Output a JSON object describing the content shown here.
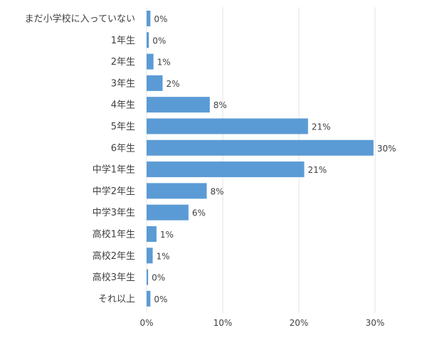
{
  "chart_data": {
    "type": "bar",
    "orientation": "horizontal",
    "categories": [
      "まだ小学校に入っていない",
      "1年生",
      "2年生",
      "3年生",
      "4年生",
      "5年生",
      "6年生",
      "中学1年生",
      "中学2年生",
      "中学3年生",
      "高校1年生",
      "高校2年生",
      "高校3年生",
      "それ以上"
    ],
    "values": [
      0.5,
      0.3,
      0.9,
      2.1,
      8.3,
      21.2,
      29.8,
      20.7,
      7.9,
      5.5,
      1.3,
      0.8,
      0.2,
      0.5
    ],
    "value_labels": [
      "0%",
      "0%",
      "1%",
      "2%",
      "8%",
      "21%",
      "30%",
      "21%",
      "8%",
      "6%",
      "1%",
      "1%",
      "0%",
      "0%"
    ],
    "xlim": [
      0,
      30
    ],
    "xticks": [
      0,
      10,
      20,
      30
    ],
    "xtick_labels": [
      "0%",
      "10%",
      "20%",
      "30%"
    ],
    "grid": "vertical",
    "legend": "none",
    "bar_color": "#5B9BD5",
    "grid_color": "#E3E3E3",
    "text_color": "#404040"
  }
}
